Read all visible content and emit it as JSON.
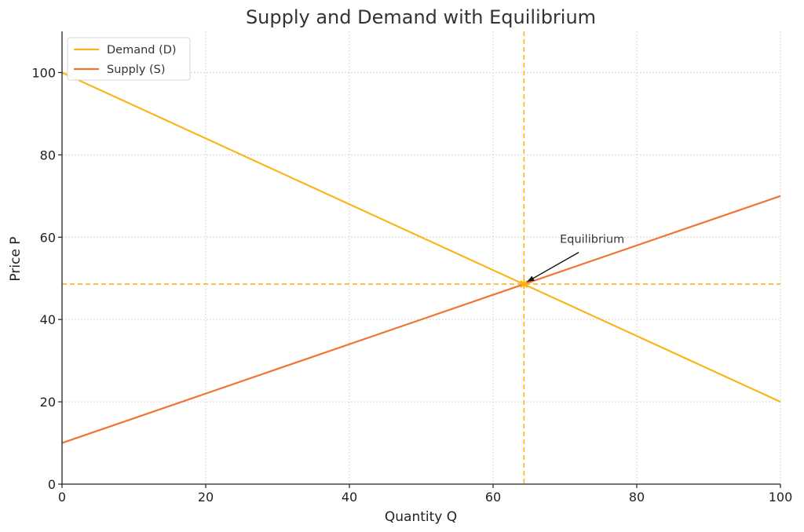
{
  "chart_data": {
    "type": "line",
    "title": "Supply and Demand with Equilibrium",
    "xlabel": "Quantity Q",
    "ylabel": "Price P",
    "xlim": [
      0,
      100
    ],
    "ylim": [
      0,
      110
    ],
    "xticks": [
      0,
      20,
      40,
      60,
      80,
      100
    ],
    "yticks": [
      0,
      20,
      40,
      60,
      80,
      100
    ],
    "grid": true,
    "legend_position": "top-left",
    "series": [
      {
        "name": "Demand (D)",
        "color": "#FBB41A",
        "x": [
          0,
          100
        ],
        "y": [
          100,
          20
        ]
      },
      {
        "name": "Supply (S)",
        "color": "#F07434",
        "x": [
          0,
          100
        ],
        "y": [
          10,
          70
        ]
      }
    ],
    "equilibrium": {
      "x": 64.3,
      "y": 48.6,
      "color": "#FBB41A"
    },
    "annotations": [
      {
        "text": "Equilibrium",
        "text_x": 69.3,
        "text_y": 58.6,
        "arrow_to_x": 64.3,
        "arrow_to_y": 48.6
      }
    ]
  }
}
